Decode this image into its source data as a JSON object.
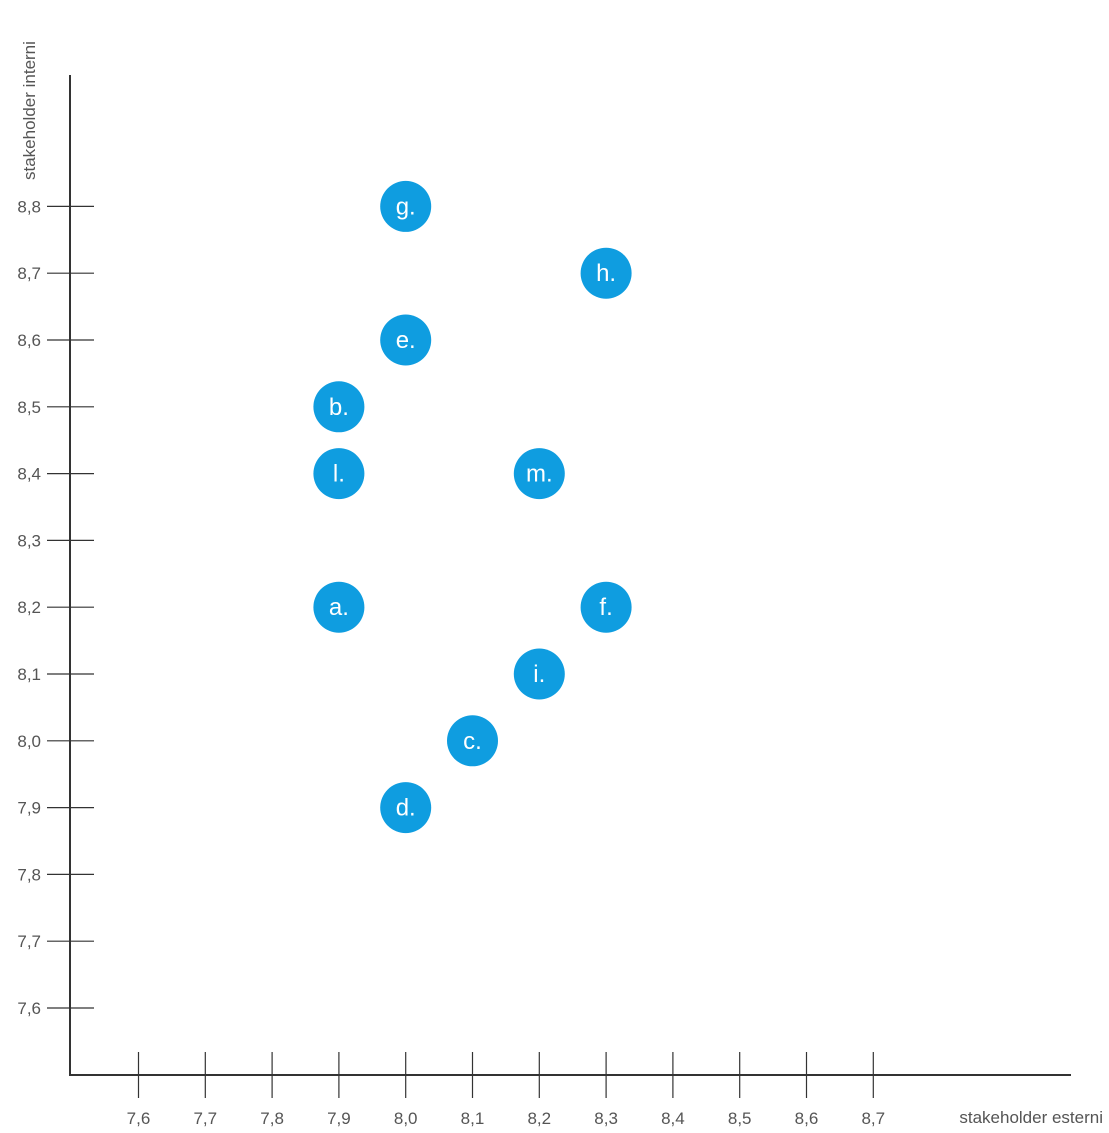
{
  "chart_data": {
    "type": "scatter",
    "title": "",
    "xlabel": "stakeholder esterni",
    "ylabel": "stakeholder interni",
    "xlim": [
      7.5,
      8.8
    ],
    "ylim": [
      7.5,
      8.8
    ],
    "grid": false,
    "x_ticks": [
      "7,6",
      "7,7",
      "7,8",
      "7,9",
      "8,0",
      "8,1",
      "8,2",
      "8,3",
      "8,4",
      "8,5",
      "8,6",
      "8,7"
    ],
    "x_tick_values": [
      7.6,
      7.7,
      7.8,
      7.9,
      8.0,
      8.1,
      8.2,
      8.3,
      8.4,
      8.5,
      8.6,
      8.7
    ],
    "y_ticks": [
      "7,6",
      "7,7",
      "7,8",
      "7,9",
      "8,0",
      "8,1",
      "8,2",
      "8,3",
      "8,4",
      "8,5",
      "8,6",
      "8,7",
      "8,8"
    ],
    "y_tick_values": [
      7.6,
      7.7,
      7.8,
      7.9,
      8.0,
      8.1,
      8.2,
      8.3,
      8.4,
      8.5,
      8.6,
      8.7,
      8.8
    ],
    "point_color": "#0f9de0",
    "points": [
      {
        "label": "g.",
        "x": 8.0,
        "y": 8.8
      },
      {
        "label": "h.",
        "x": 8.3,
        "y": 8.7
      },
      {
        "label": "e.",
        "x": 8.0,
        "y": 8.6
      },
      {
        "label": "b.",
        "x": 7.9,
        "y": 8.5
      },
      {
        "label": "l.",
        "x": 7.9,
        "y": 8.4
      },
      {
        "label": "m.",
        "x": 8.2,
        "y": 8.4
      },
      {
        "label": "a.",
        "x": 7.9,
        "y": 8.2
      },
      {
        "label": "f.",
        "x": 8.3,
        "y": 8.2
      },
      {
        "label": "i.",
        "x": 8.2,
        "y": 8.1
      },
      {
        "label": "c.",
        "x": 8.1,
        "y": 8.0
      },
      {
        "label": "d.",
        "x": 8.0,
        "y": 7.9
      }
    ]
  }
}
